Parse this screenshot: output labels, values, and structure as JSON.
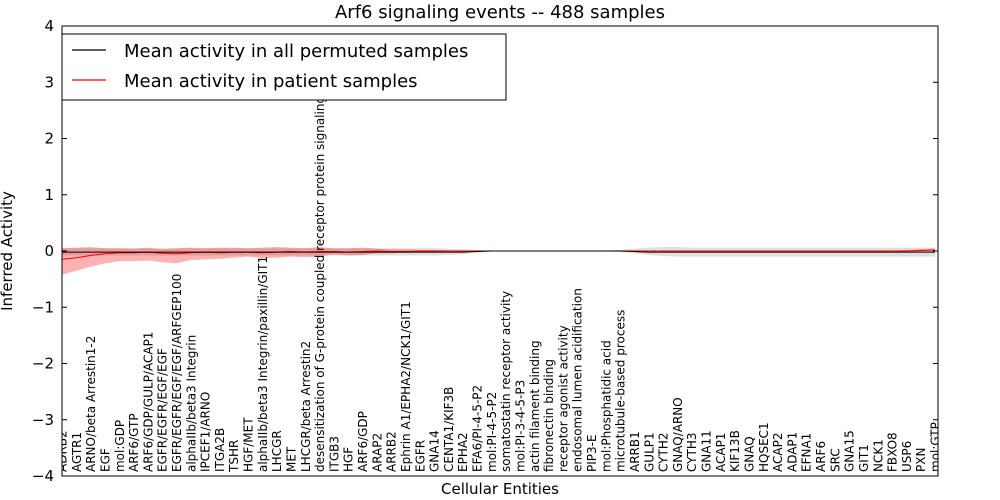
{
  "chart_data": {
    "type": "line",
    "title": "Arf6 signaling events -- 488 samples",
    "xlabel": "Cellular Entities",
    "ylabel": "Inferred Activity",
    "ylim": [
      -4,
      4
    ],
    "yticks": [
      -4,
      -3,
      -2,
      -1,
      0,
      1,
      2,
      3,
      4
    ],
    "ytick_labels": [
      "−4",
      "−3",
      "−2",
      "−1",
      "0",
      "1",
      "2",
      "3",
      "4"
    ],
    "grid": false,
    "legend_position": "top-left",
    "categories": [
      "ADRB2",
      "AGTR1",
      "ARNO/beta Arrestin1-2",
      "EGF",
      "mol:GDP",
      "ARF6/GTP",
      "ARF6/GDP/GULP/ACAP1",
      "EGFR/EGFR/EGF/EGF",
      "EGFR/EGFR/EGF/EGF/ARFGEP100",
      "alphaIIb/beta3 Integrin",
      "IPCEF1/ARNO",
      "ITGA2B",
      "TSHR",
      "HGF/MET",
      "alphaIIb/beta3 Integrin/paxillin/GIT1",
      "LHCGR",
      "MET",
      "LHCGR/beta Arrestin2",
      "desensitization of G-protein coupled receptor protein signaling pathway",
      "ITGB3",
      "HGF",
      "ARF6/GDP",
      "ARAP2",
      "ARRB2",
      "Ephrin A1/EPHA2/NCK1/GIT1",
      "EGFR",
      "GNA14",
      "CENTA1/KIF3B",
      "EPHA2",
      "EFA6/PI-4-5-P2",
      "mol:PI-4-5-P2",
      "somatostatin receptor activity",
      "mol:PI-3-4-5-P3",
      "actin filament binding",
      "fibronectin binding",
      "receptor agonist activity",
      "endosomal lumen acidification",
      "PIP3-E",
      "mol:Phosphatidic acid",
      "microtubule-based process",
      "ARRB1",
      "GULP1",
      "CYTH2",
      "GNAQ/ARNO",
      "CYTH3",
      "GNA11",
      "ACAP1",
      "KIF13B",
      "GNAQ",
      "HQSEC1",
      "ACAP2",
      "ADAP1",
      "EFNA1",
      "ARF6",
      "SRC",
      "GNA15",
      "GIT1",
      "NCK1",
      "FBXO8",
      "USP6",
      "PXN",
      "mol:GTP"
    ],
    "series": [
      {
        "name": "Mean activity in all permuted samples",
        "color": "#000000",
        "values": [
          -0.02,
          -0.02,
          -0.02,
          -0.02,
          -0.02,
          -0.02,
          -0.02,
          -0.02,
          -0.02,
          -0.02,
          -0.02,
          -0.02,
          -0.02,
          -0.02,
          -0.02,
          -0.02,
          -0.02,
          -0.02,
          -0.02,
          -0.02,
          -0.02,
          -0.02,
          -0.02,
          -0.02,
          -0.02,
          -0.02,
          -0.02,
          -0.02,
          -0.02,
          -0.01,
          0.0,
          0.0,
          0.0,
          0.0,
          0.0,
          0.0,
          0.0,
          0.0,
          0.0,
          0.0,
          -0.01,
          -0.02,
          -0.02,
          -0.02,
          -0.02,
          -0.02,
          -0.02,
          -0.02,
          -0.02,
          -0.02,
          -0.02,
          -0.02,
          -0.02,
          -0.02,
          -0.02,
          -0.02,
          -0.02,
          -0.02,
          -0.02,
          -0.02,
          -0.02,
          -0.02
        ],
        "band_low": [
          -0.08,
          -0.08,
          -0.08,
          -0.08,
          -0.08,
          -0.08,
          -0.08,
          -0.08,
          -0.08,
          -0.08,
          -0.08,
          -0.08,
          -0.08,
          -0.08,
          -0.08,
          -0.08,
          -0.08,
          -0.08,
          -0.08,
          -0.08,
          -0.08,
          -0.08,
          -0.08,
          -0.08,
          -0.08,
          -0.08,
          -0.08,
          -0.07,
          -0.06,
          -0.03,
          -0.01,
          -0.01,
          -0.01,
          -0.01,
          -0.01,
          -0.01,
          -0.01,
          -0.01,
          -0.01,
          -0.02,
          -0.04,
          -0.07,
          -0.09,
          -0.1,
          -0.1,
          -0.1,
          -0.1,
          -0.1,
          -0.1,
          -0.1,
          -0.1,
          -0.1,
          -0.1,
          -0.1,
          -0.1,
          -0.1,
          -0.1,
          -0.1,
          -0.1,
          -0.1,
          -0.1,
          -0.1
        ],
        "band_high": [
          0.05,
          0.05,
          0.05,
          0.05,
          0.05,
          0.05,
          0.05,
          0.05,
          0.05,
          0.05,
          0.05,
          0.05,
          0.05,
          0.05,
          0.05,
          0.05,
          0.05,
          0.05,
          0.05,
          0.05,
          0.05,
          0.05,
          0.05,
          0.05,
          0.05,
          0.05,
          0.05,
          0.04,
          0.03,
          0.02,
          0.01,
          0.01,
          0.01,
          0.01,
          0.01,
          0.01,
          0.01,
          0.01,
          0.01,
          0.02,
          0.04,
          0.06,
          0.07,
          0.07,
          0.06,
          0.06,
          0.06,
          0.06,
          0.06,
          0.06,
          0.06,
          0.06,
          0.06,
          0.06,
          0.06,
          0.06,
          0.06,
          0.06,
          0.06,
          0.06,
          0.06,
          0.06
        ]
      },
      {
        "name": "Mean activity in patient samples",
        "color": "#ff0000",
        "values": [
          -0.15,
          -0.12,
          -0.08,
          -0.05,
          -0.03,
          -0.03,
          -0.02,
          -0.04,
          -0.05,
          -0.03,
          -0.02,
          -0.03,
          -0.02,
          -0.02,
          -0.03,
          -0.02,
          -0.01,
          -0.02,
          -0.01,
          -0.01,
          -0.02,
          -0.01,
          0.0,
          -0.01,
          -0.01,
          0.0,
          0.0,
          0.0,
          0.0,
          0.0,
          0.0,
          0.0,
          0.0,
          0.0,
          0.0,
          0.0,
          0.0,
          0.0,
          0.0,
          0.0,
          0.0,
          0.0,
          0.0,
          0.0,
          0.0,
          0.0,
          0.0,
          0.0,
          0.0,
          0.0,
          0.0,
          0.0,
          0.0,
          0.0,
          0.0,
          0.0,
          0.0,
          0.0,
          0.0,
          0.0,
          0.01,
          0.02
        ],
        "band_low": [
          -0.42,
          -0.35,
          -0.28,
          -0.22,
          -0.18,
          -0.18,
          -0.17,
          -0.2,
          -0.22,
          -0.16,
          -0.15,
          -0.14,
          -0.12,
          -0.1,
          -0.13,
          -0.12,
          -0.1,
          -0.11,
          -0.1,
          -0.06,
          -0.08,
          -0.07,
          -0.04,
          -0.04,
          -0.03,
          -0.02,
          -0.02,
          -0.01,
          -0.01,
          0.0,
          0.0,
          0.0,
          0.0,
          0.0,
          0.0,
          0.0,
          0.0,
          0.0,
          0.0,
          0.0,
          -0.01,
          -0.01,
          -0.01,
          -0.01,
          -0.01,
          -0.01,
          -0.01,
          -0.01,
          -0.01,
          -0.01,
          -0.01,
          -0.01,
          -0.01,
          -0.01,
          -0.01,
          -0.01,
          -0.01,
          -0.01,
          -0.01,
          -0.01,
          -0.01,
          -0.01
        ],
        "band_high": [
          0.05,
          0.06,
          0.07,
          0.05,
          0.05,
          0.04,
          0.06,
          0.03,
          0.05,
          0.06,
          0.05,
          0.06,
          0.06,
          0.05,
          0.06,
          0.07,
          0.06,
          0.05,
          0.07,
          0.05,
          0.05,
          0.06,
          0.04,
          0.03,
          0.03,
          0.02,
          0.02,
          0.01,
          0.01,
          0.0,
          0.0,
          0.0,
          0.0,
          0.0,
          0.0,
          0.0,
          0.0,
          0.0,
          0.0,
          0.0,
          0.01,
          0.01,
          0.01,
          0.01,
          0.01,
          0.01,
          0.01,
          0.01,
          0.01,
          0.01,
          0.01,
          0.01,
          0.01,
          0.01,
          0.01,
          0.01,
          0.01,
          0.01,
          0.01,
          0.02,
          0.03,
          0.04
        ]
      }
    ]
  }
}
